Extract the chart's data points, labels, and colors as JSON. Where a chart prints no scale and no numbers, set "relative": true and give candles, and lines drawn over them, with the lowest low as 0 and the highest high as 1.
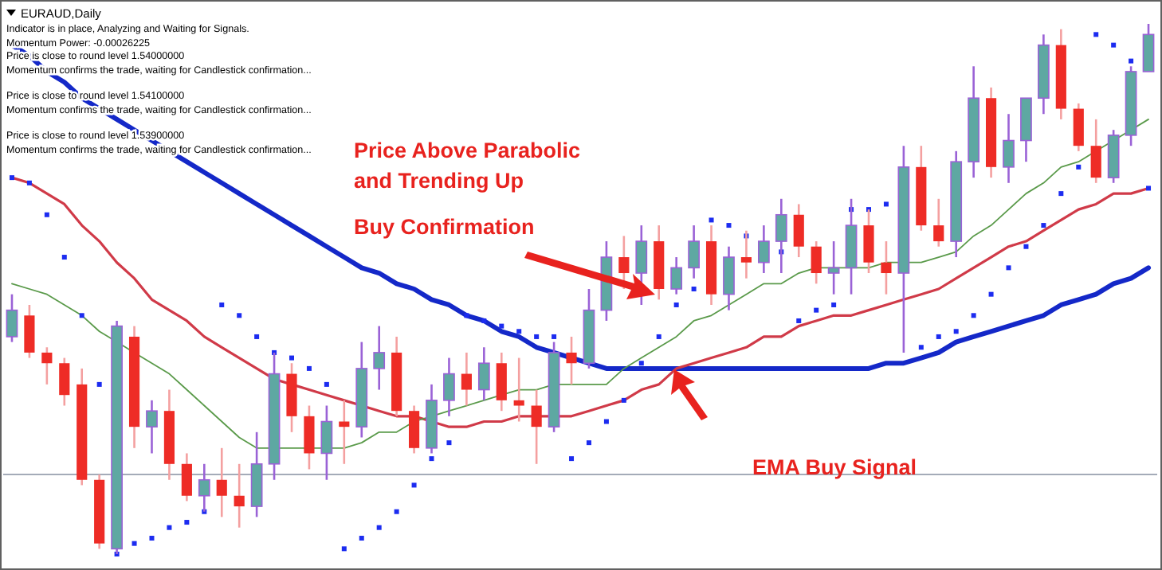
{
  "chart_data": {
    "type": "candlestick",
    "title": "EURAUD,Daily",
    "subtitle": "Indicator is in place, Analyzing and Waiting for Signals.",
    "relative": true,
    "annotations": [
      "Momentum Power: -0.00026225",
      "Price is close to round level 1.54000000",
      "Momentum confirms the trade, waiting for Candlestick confirmation...",
      "Price is close to round level 1.54100000",
      "Momentum confirms the trade, waiting for Candlestick confirmation...",
      "Price is close to round level 1.53900000",
      "Momentum confirms the trade, waiting for Candlestick confirmation...",
      "Price Above Parabolic\nand Trending Up",
      "Buy Confirmation",
      "EMA Buy Signal"
    ],
    "categories": [
      null,
      null,
      null,
      null,
      null,
      null,
      null,
      null,
      null,
      null,
      null,
      null,
      null,
      null,
      null,
      null,
      null,
      null,
      null,
      null,
      null,
      null,
      null,
      null,
      null,
      null,
      null,
      null,
      null,
      null,
      null,
      null,
      null,
      null,
      null,
      null,
      null,
      null,
      null,
      null,
      null,
      null,
      null,
      null,
      null,
      null,
      null,
      null,
      null,
      null,
      null,
      null,
      null,
      null,
      null,
      null,
      null,
      null,
      null,
      null,
      null,
      null,
      null,
      null,
      null,
      null
    ],
    "ohlc": [
      [
        0.41,
        0.49,
        0.4,
        0.46
      ],
      [
        0.45,
        0.47,
        0.37,
        0.38
      ],
      [
        0.38,
        0.39,
        0.32,
        0.36
      ],
      [
        0.36,
        0.37,
        0.28,
        0.3
      ],
      [
        0.32,
        0.35,
        0.13,
        0.14
      ],
      [
        0.14,
        0.15,
        0.01,
        0.02
      ],
      [
        0.01,
        0.44,
        0,
        0.43
      ],
      [
        0.41,
        0.43,
        0.2,
        0.24
      ],
      [
        0.24,
        0.29,
        0.19,
        0.27
      ],
      [
        0.27,
        0.31,
        0.14,
        0.17
      ],
      [
        0.17,
        0.19,
        0.1,
        0.11
      ],
      [
        0.11,
        0.17,
        0.08,
        0.14
      ],
      [
        0.14,
        0.2,
        0.07,
        0.11
      ],
      [
        0.11,
        0.17,
        0.05,
        0.09
      ],
      [
        0.09,
        0.23,
        0.07,
        0.17
      ],
      [
        0.17,
        0.38,
        0.14,
        0.34
      ],
      [
        0.34,
        0.36,
        0.23,
        0.26
      ],
      [
        0.26,
        0.28,
        0.16,
        0.19
      ],
      [
        0.19,
        0.28,
        0.14,
        0.25
      ],
      [
        0.25,
        0.29,
        0.17,
        0.24
      ],
      [
        0.24,
        0.4,
        0.22,
        0.35
      ],
      [
        0.35,
        0.43,
        0.31,
        0.38
      ],
      [
        0.38,
        0.41,
        0.26,
        0.27
      ],
      [
        0.27,
        0.28,
        0.19,
        0.2
      ],
      [
        0.2,
        0.32,
        0.19,
        0.29
      ],
      [
        0.29,
        0.37,
        0.26,
        0.34
      ],
      [
        0.34,
        0.38,
        0.28,
        0.31
      ],
      [
        0.31,
        0.39,
        0.29,
        0.36
      ],
      [
        0.36,
        0.38,
        0.27,
        0.29
      ],
      [
        0.29,
        0.37,
        0.25,
        0.28
      ],
      [
        0.28,
        0.31,
        0.17,
        0.24
      ],
      [
        0.24,
        0.4,
        0.23,
        0.38
      ],
      [
        0.38,
        0.41,
        0.32,
        0.36
      ],
      [
        0.36,
        0.5,
        0.35,
        0.46
      ],
      [
        0.46,
        0.59,
        0.44,
        0.56
      ],
      [
        0.56,
        0.6,
        0.5,
        0.53
      ],
      [
        0.53,
        0.62,
        0.47,
        0.59
      ],
      [
        0.59,
        0.62,
        0.48,
        0.5
      ],
      [
        0.5,
        0.56,
        0.49,
        0.54
      ],
      [
        0.54,
        0.62,
        0.52,
        0.59
      ],
      [
        0.59,
        0.62,
        0.47,
        0.49
      ],
      [
        0.49,
        0.58,
        0.46,
        0.56
      ],
      [
        0.56,
        0.61,
        0.52,
        0.55
      ],
      [
        0.55,
        0.62,
        0.53,
        0.59
      ],
      [
        0.59,
        0.67,
        0.53,
        0.64
      ],
      [
        0.64,
        0.66,
        0.56,
        0.58
      ],
      [
        0.58,
        0.59,
        0.51,
        0.53
      ],
      [
        0.53,
        0.59,
        0.49,
        0.54
      ],
      [
        0.54,
        0.67,
        0.49,
        0.62
      ],
      [
        0.62,
        0.65,
        0.53,
        0.55
      ],
      [
        0.55,
        0.59,
        0.49,
        0.53
      ],
      [
        0.53,
        0.77,
        0.38,
        0.73
      ],
      [
        0.73,
        0.77,
        0.61,
        0.62
      ],
      [
        0.62,
        0.67,
        0.58,
        0.59
      ],
      [
        0.59,
        0.76,
        0.56,
        0.74
      ],
      [
        0.74,
        0.92,
        0.71,
        0.86
      ],
      [
        0.86,
        0.88,
        0.71,
        0.73
      ],
      [
        0.73,
        0.83,
        0.7,
        0.78
      ],
      [
        0.78,
        0.86,
        0.74,
        0.86
      ],
      [
        0.86,
        0.98,
        0.83,
        0.96
      ],
      [
        0.96,
        0.99,
        0.82,
        0.84
      ],
      [
        0.84,
        0.85,
        0.76,
        0.77
      ],
      [
        0.77,
        0.82,
        0.7,
        0.71
      ],
      [
        0.71,
        0.8,
        0.7,
        0.79
      ],
      [
        0.79,
        0.92,
        0.77,
        0.91
      ],
      [
        0.91,
        1,
        0.91,
        0.98
      ]
    ],
    "series": [
      {
        "type": "line",
        "color": "#1428c8",
        "values": [
          0.96,
          0.94,
          0.91,
          0.89,
          0.86,
          0.84,
          0.82,
          0.8,
          0.78,
          0.76,
          0.74,
          0.72,
          0.7,
          0.68,
          0.66,
          0.64,
          0.62,
          0.6,
          0.58,
          0.56,
          0.54,
          0.53,
          0.51,
          0.5,
          0.48,
          0.47,
          0.45,
          0.44,
          0.42,
          0.41,
          0.39,
          0.38,
          0.37,
          0.36,
          0.35,
          0.35,
          0.35,
          0.35,
          0.35,
          0.35,
          0.35,
          0.35,
          0.35,
          0.35,
          0.35,
          0.35,
          0.35,
          0.35,
          0.35,
          0.35,
          0.36,
          0.36,
          0.37,
          0.38,
          0.4,
          0.41,
          0.42,
          0.43,
          0.44,
          0.45,
          0.47,
          0.48,
          0.49,
          0.51,
          0.52,
          0.54
        ]
      },
      {
        "type": "line",
        "color": "#d03a48",
        "values": [
          0.71,
          0.7,
          0.68,
          0.66,
          0.62,
          0.59,
          0.55,
          0.52,
          0.48,
          0.46,
          0.44,
          0.41,
          0.39,
          0.37,
          0.35,
          0.33,
          0.32,
          0.31,
          0.3,
          0.29,
          0.28,
          0.27,
          0.26,
          0.26,
          0.25,
          0.24,
          0.24,
          0.25,
          0.25,
          0.26,
          0.26,
          0.26,
          0.26,
          0.27,
          0.28,
          0.29,
          0.31,
          0.32,
          0.35,
          0.36,
          0.37,
          0.38,
          0.39,
          0.41,
          0.41,
          0.43,
          0.44,
          0.45,
          0.45,
          0.46,
          0.47,
          0.48,
          0.49,
          0.5,
          0.52,
          0.54,
          0.56,
          0.58,
          0.59,
          0.61,
          0.63,
          0.65,
          0.66,
          0.68,
          0.68,
          0.69
        ]
      },
      {
        "type": "line",
        "color": "#5a9a4a",
        "values": [
          0.51,
          0.5,
          0.49,
          0.47,
          0.45,
          0.42,
          0.4,
          0.38,
          0.36,
          0.34,
          0.31,
          0.28,
          0.25,
          0.22,
          0.2,
          0.2,
          0.2,
          0.2,
          0.2,
          0.2,
          0.21,
          0.23,
          0.23,
          0.25,
          0.26,
          0.27,
          0.28,
          0.29,
          0.3,
          0.31,
          0.31,
          0.32,
          0.32,
          0.32,
          0.32,
          0.35,
          0.37,
          0.39,
          0.41,
          0.44,
          0.45,
          0.47,
          0.49,
          0.51,
          0.51,
          0.53,
          0.54,
          0.54,
          0.54,
          0.54,
          0.55,
          0.55,
          0.55,
          0.56,
          0.57,
          0.6,
          0.62,
          0.65,
          0.68,
          0.7,
          0.73,
          0.74,
          0.76,
          0.78,
          0.8,
          0.82
        ]
      },
      {
        "type": "scatter",
        "marker": "square",
        "color": "#1c2cf0",
        "values": [
          0.71,
          0.7,
          0.64,
          0.56,
          0.45,
          0.32,
          0,
          0.02,
          0.03,
          0.05,
          0.06,
          0.08,
          0.47,
          0.45,
          0.41,
          0.38,
          0.37,
          0.35,
          0.32,
          0.01,
          0.03,
          0.05,
          0.08,
          0.13,
          0.18,
          0.21,
          0.45,
          0.44,
          0.43,
          0.42,
          0.41,
          0.41,
          0.18,
          0.21,
          0.25,
          0.29,
          0.36,
          0.41,
          0.47,
          0.5,
          0.63,
          0.62,
          0.6,
          null,
          0.57,
          0.44,
          0.46,
          0.47,
          0.65,
          0.65,
          0.66,
          null,
          0.39,
          0.41,
          0.42,
          0.45,
          0.49,
          0.54,
          0.58,
          0.62,
          0.68,
          0.73,
          0.98,
          0.96,
          0.93,
          0.69
        ]
      }
    ],
    "ref_lines": [
      {
        "axis": "y",
        "value": 0.15,
        "color": "#a4abb8"
      }
    ]
  }
}
